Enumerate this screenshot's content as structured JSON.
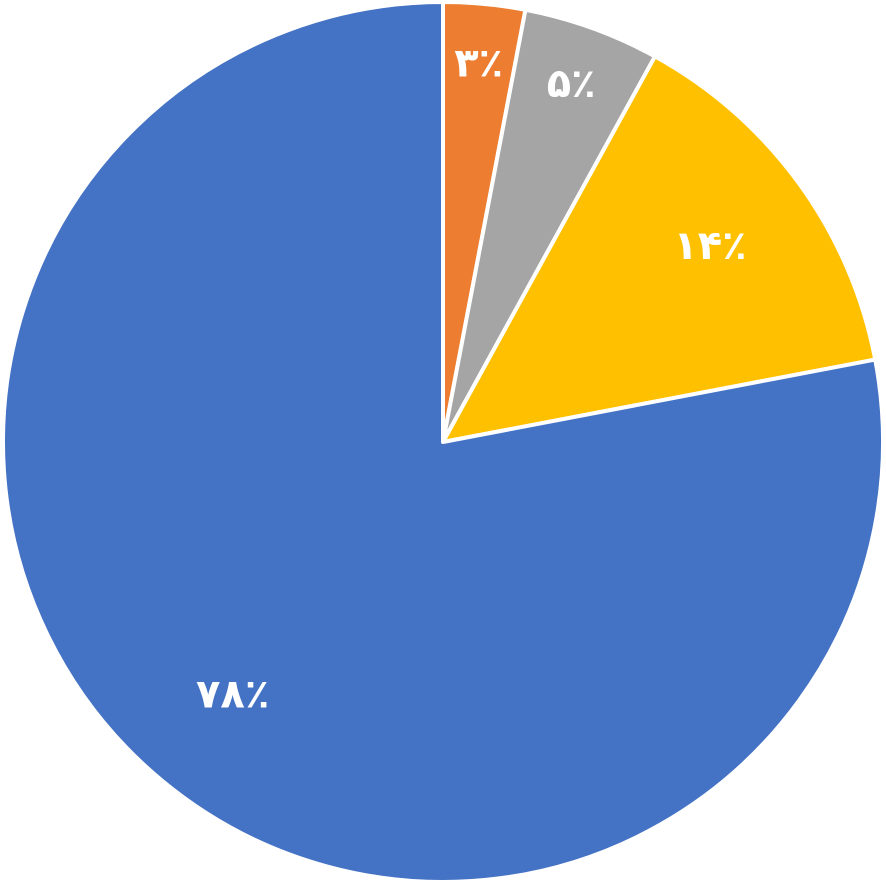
{
  "chart_data": {
    "type": "pie",
    "values": [
      3,
      5,
      14,
      78
    ],
    "value_labels": [
      "۳٪",
      "۵٪",
      "۱۴٪",
      "۷۸٪"
    ],
    "colors": [
      "#ed7d31",
      "#a5a5a5",
      "#ffc000",
      "#4472c4"
    ]
  }
}
